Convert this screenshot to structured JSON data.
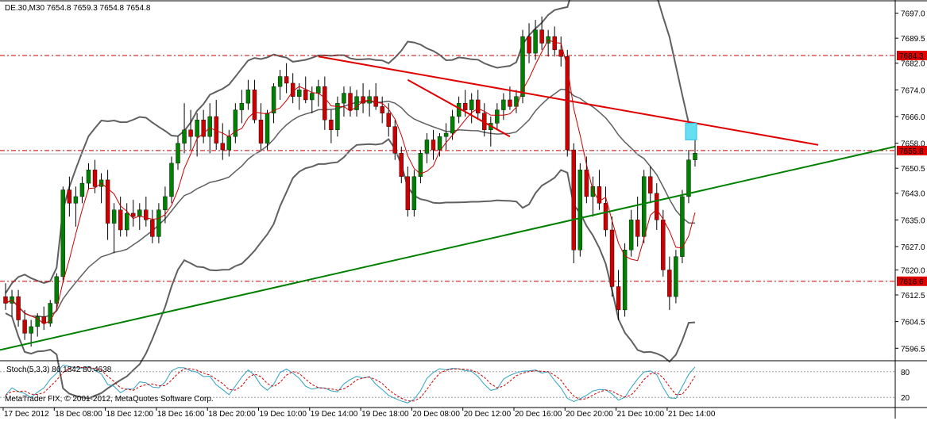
{
  "window": {
    "header_text": "DE.30,M30  7654.8 7659.3 7654.8 7654.8",
    "copyright": "MetaTrader FIX, © 2001-2012, MetaQuotes Software Corp."
  },
  "colors": {
    "background": "#ffffff",
    "bull_body": "#008000",
    "bear_body": "#cc0000",
    "wick": "#000000",
    "bollinger": "#606060",
    "ma_line": "#cc0000",
    "red_trendline": "#e00000",
    "green_trendline": "#008000",
    "hline": "#cc0000",
    "price_tag_bg": "#e00000",
    "price_tag_text": "#ffffff",
    "stoch_main": "#30a0c0",
    "stoch_signal": "#cc0000",
    "highlight": "#66e0f0"
  },
  "price_axis": {
    "ticks": [
      "7697.0",
      "7689.5",
      "7682.0",
      "7674.0",
      "7666.0",
      "7658.0",
      "7650.5",
      "7643.0",
      "7635.0",
      "7627.0",
      "7620.0",
      "7612.5",
      "7604.5",
      "7596.5"
    ],
    "tags": [
      "7684.3",
      "7655.8",
      "7616.6"
    ]
  },
  "stoch": {
    "label": "Stoch(5,3,3) 86.1842 80.4638",
    "axis_ticks": [
      "80",
      "20"
    ]
  },
  "time_axis": {
    "labels": [
      "17 Dec 2012",
      "18 Dec 08:00",
      "18 Dec 12:00",
      "18 Dec 16:00",
      "18 Dec 20:00",
      "19 Dec 10:00",
      "19 Dec 14:00",
      "19 Dec 18:00",
      "20 Dec 08:00",
      "20 Dec 12:00",
      "20 Dec 16:00",
      "20 Dec 20:00",
      "21 Dec 10:00",
      "21 Dec 14:00"
    ]
  },
  "chart_data": {
    "type": "candlestick",
    "symbol": "DE.30",
    "timeframe": "M30",
    "ohlc_current": {
      "open": 7654.8,
      "high": 7659.3,
      "low": 7654.8,
      "close": 7654.8
    },
    "ylim": [
      7593.0,
      7700.0
    ],
    "horizontal_levels": [
      7684.3,
      7655.8,
      7616.6
    ],
    "candles": [
      [
        7612,
        7616,
        7608,
        7610
      ],
      [
        7610,
        7614,
        7606,
        7612
      ],
      [
        7612,
        7614,
        7603,
        7605
      ],
      [
        7605,
        7608,
        7599,
        7601
      ],
      [
        7601,
        7605,
        7597,
        7603
      ],
      [
        7603,
        7607,
        7600,
        7606
      ],
      [
        7606,
        7609,
        7602,
        7604
      ],
      [
        7604,
        7611,
        7603,
        7610
      ],
      [
        7610,
        7619,
        7608,
        7618
      ],
      [
        7618,
        7645,
        7616,
        7644
      ],
      [
        7644,
        7648,
        7636,
        7640
      ],
      [
        7640,
        7645,
        7633,
        7642
      ],
      [
        7642,
        7648,
        7640,
        7646
      ],
      [
        7646,
        7652,
        7644,
        7650
      ],
      [
        7650,
        7653,
        7643,
        7645
      ],
      [
        7645,
        7649,
        7640,
        7647
      ],
      [
        7647,
        7650,
        7629,
        7634
      ],
      [
        7634,
        7640,
        7625,
        7638
      ],
      [
        7638,
        7642,
        7630,
        7632
      ],
      [
        7632,
        7640,
        7630,
        7637
      ],
      [
        7637,
        7641,
        7633,
        7636
      ],
      [
        7636,
        7640,
        7632,
        7638
      ],
      [
        7638,
        7642,
        7633,
        7635
      ],
      [
        7635,
        7638,
        7628,
        7630
      ],
      [
        7630,
        7640,
        7628,
        7638
      ],
      [
        7638,
        7645,
        7634,
        7642
      ],
      [
        7642,
        7654,
        7640,
        7652
      ],
      [
        7652,
        7660,
        7650,
        7658
      ],
      [
        7658,
        7670,
        7655,
        7662
      ],
      [
        7662,
        7668,
        7656,
        7660
      ],
      [
        7660,
        7667,
        7654,
        7665
      ],
      [
        7665,
        7668,
        7658,
        7660
      ],
      [
        7660,
        7670,
        7655,
        7666
      ],
      [
        7666,
        7671,
        7656,
        7658
      ],
      [
        7658,
        7664,
        7653,
        7656
      ],
      [
        7656,
        7662,
        7654,
        7660
      ],
      [
        7660,
        7670,
        7658,
        7668
      ],
      [
        7668,
        7674,
        7664,
        7670
      ],
      [
        7670,
        7677,
        7668,
        7674
      ],
      [
        7674,
        7677,
        7664,
        7665
      ],
      [
        7665,
        7670,
        7656,
        7658
      ],
      [
        7658,
        7668,
        7656,
        7667
      ],
      [
        7667,
        7676,
        7664,
        7675
      ],
      [
        7675,
        7680,
        7671,
        7678
      ],
      [
        7678,
        7682,
        7673,
        7676
      ],
      [
        7676,
        7679,
        7670,
        7672
      ],
      [
        7672,
        7676,
        7668,
        7674
      ],
      [
        7674,
        7678,
        7670,
        7671
      ],
      [
        7671,
        7675,
        7667,
        7673
      ],
      [
        7673,
        7677,
        7669,
        7675
      ],
      [
        7675,
        7678,
        7662,
        7665
      ],
      [
        7665,
        7668,
        7658,
        7662
      ],
      [
        7662,
        7672,
        7660,
        7670
      ],
      [
        7670,
        7675,
        7666,
        7673
      ],
      [
        7673,
        7675,
        7666,
        7668
      ],
      [
        7668,
        7674,
        7666,
        7672
      ],
      [
        7672,
        7676,
        7667,
        7670
      ],
      [
        7670,
        7674,
        7666,
        7672
      ],
      [
        7672,
        7676,
        7668,
        7669
      ],
      [
        7669,
        7672,
        7664,
        7667
      ],
      [
        7667,
        7670,
        7660,
        7663
      ],
      [
        7663,
        7665,
        7653,
        7655
      ],
      [
        7655,
        7657,
        7646,
        7648
      ],
      [
        7648,
        7651,
        7636,
        7638
      ],
      [
        7638,
        7650,
        7636,
        7648
      ],
      [
        7648,
        7656,
        7646,
        7655
      ],
      [
        7655,
        7661,
        7652,
        7659
      ],
      [
        7659,
        7662,
        7653,
        7656
      ],
      [
        7656,
        7661,
        7654,
        7660
      ],
      [
        7660,
        7664,
        7656,
        7661
      ],
      [
        7661,
        7668,
        7659,
        7666
      ],
      [
        7666,
        7672,
        7664,
        7670
      ],
      [
        7670,
        7674,
        7666,
        7668
      ],
      [
        7668,
        7673,
        7664,
        7671
      ],
      [
        7671,
        7674,
        7665,
        7667
      ],
      [
        7667,
        7670,
        7660,
        7662
      ],
      [
        7662,
        7666,
        7657,
        7664
      ],
      [
        7664,
        7670,
        7662,
        7668
      ],
      [
        7668,
        7673,
        7665,
        7671
      ],
      [
        7671,
        7675,
        7668,
        7669
      ],
      [
        7669,
        7674,
        7667,
        7672
      ],
      [
        7672,
        7692,
        7670,
        7690
      ],
      [
        7690,
        7694,
        7682,
        7685
      ],
      [
        7685,
        7695,
        7683,
        7692
      ],
      [
        7692,
        7696,
        7686,
        7688
      ],
      [
        7688,
        7692,
        7684,
        7690
      ],
      [
        7690,
        7693,
        7684,
        7686
      ],
      [
        7686,
        7690,
        7681,
        7684
      ],
      [
        7684,
        7686,
        7654,
        7656
      ],
      [
        7656,
        7658,
        7622,
        7626
      ],
      [
        7626,
        7652,
        7624,
        7650
      ],
      [
        7650,
        7654,
        7640,
        7642
      ],
      [
        7642,
        7648,
        7636,
        7645
      ],
      [
        7645,
        7650,
        7638,
        7640
      ],
      [
        7640,
        7645,
        7630,
        7632
      ],
      [
        7632,
        7636,
        7612,
        7615
      ],
      [
        7615,
        7620,
        7605,
        7608
      ],
      [
        7608,
        7628,
        7606,
        7626
      ],
      [
        7626,
        7638,
        7624,
        7635
      ],
      [
        7635,
        7642,
        7627,
        7630
      ],
      [
        7630,
        7650,
        7628,
        7648
      ],
      [
        7648,
        7651,
        7640,
        7643
      ],
      [
        7643,
        7646,
        7632,
        7635
      ],
      [
        7635,
        7638,
        7618,
        7620
      ],
      [
        7620,
        7624,
        7608,
        7612
      ],
      [
        7612,
        7626,
        7610,
        7624
      ],
      [
        7624,
        7644,
        7622,
        7642
      ],
      [
        7642,
        7656,
        7640,
        7653
      ],
      [
        7653,
        7660,
        7651,
        7655
      ]
    ],
    "stochastic": {
      "period": [
        5,
        3,
        3
      ],
      "main": 86.1842,
      "signal": 80.4638,
      "levels": [
        80,
        20
      ]
    }
  }
}
